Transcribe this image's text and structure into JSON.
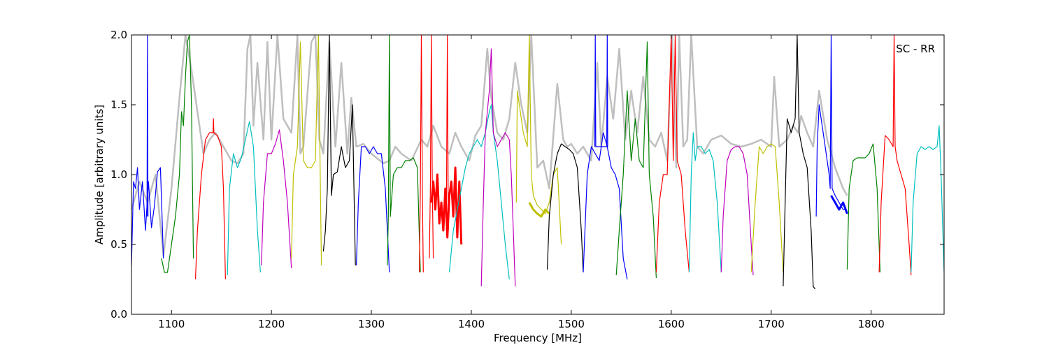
{
  "chart_data": {
    "type": "line",
    "title": "",
    "annotation": "SC - RR",
    "xlabel": "Frequency [MHz]",
    "ylabel": "Amplitude [arbitrary units]",
    "xlim": [
      1060,
      1873
    ],
    "ylim": [
      0,
      2
    ],
    "xticks": [
      1100,
      1200,
      1300,
      1400,
      1500,
      1600,
      1700,
      1800
    ],
    "yticks": [
      0.0,
      0.5,
      1.0,
      1.5,
      2.0
    ],
    "xtick_labels": [
      "1100",
      "1200",
      "1300",
      "1400",
      "1500",
      "1600",
      "1700",
      "1800"
    ],
    "ytick_labels": [
      "0.0",
      "0.5",
      "1.0",
      "1.5",
      "2.0"
    ],
    "grid": false,
    "background_series": {
      "color": "#bfbfbf",
      "x": [
        1060,
        1068,
        1076,
        1084,
        1092,
        1100,
        1108,
        1114,
        1120,
        1132,
        1138,
        1144,
        1152,
        1160,
        1166,
        1172,
        1176,
        1179,
        1182,
        1186,
        1192,
        1196,
        1200,
        1206,
        1212,
        1220,
        1226,
        1229,
        1232,
        1240,
        1244,
        1248,
        1252,
        1258,
        1264,
        1270,
        1276,
        1280,
        1285,
        1292,
        1300,
        1312,
        1318,
        1324,
        1330,
        1340,
        1350,
        1356,
        1362,
        1370,
        1378,
        1384,
        1390,
        1398,
        1404,
        1410,
        1416,
        1420,
        1426,
        1432,
        1438,
        1444,
        1450,
        1456,
        1460,
        1466,
        1472,
        1478,
        1486,
        1492,
        1496,
        1500,
        1506,
        1512,
        1520,
        1526,
        1530,
        1536,
        1542,
        1548,
        1554,
        1560,
        1566,
        1572,
        1578,
        1584,
        1590,
        1596,
        1601,
        1605,
        1608,
        1612,
        1616,
        1620,
        1626,
        1632,
        1640,
        1650,
        1660,
        1670,
        1680,
        1690,
        1700,
        1703,
        1708,
        1716,
        1722,
        1727,
        1730,
        1736,
        1742,
        1748,
        1756,
        1764,
        1772,
        1776
      ],
      "y": [
        0.75,
        0.95,
        0.8,
        1.0,
        0.42,
        0.9,
        1.55,
        2.0,
        1.75,
        1.15,
        1.25,
        1.3,
        1.2,
        1.1,
        1.08,
        1.15,
        1.9,
        2.0,
        1.35,
        1.8,
        1.25,
        1.95,
        1.25,
        2.0,
        1.4,
        1.3,
        2.0,
        1.15,
        1.2,
        1.95,
        2.0,
        1.25,
        1.15,
        1.95,
        1.2,
        1.8,
        1.15,
        1.55,
        1.2,
        1.22,
        1.15,
        1.08,
        1.1,
        1.2,
        1.15,
        1.1,
        1.25,
        1.2,
        1.35,
        1.2,
        1.15,
        1.3,
        1.2,
        1.1,
        1.28,
        1.35,
        1.9,
        1.55,
        1.3,
        1.25,
        1.4,
        1.8,
        1.5,
        1.3,
        2.0,
        1.05,
        1.1,
        0.9,
        1.65,
        1.25,
        1.2,
        1.22,
        1.15,
        1.2,
        1.1,
        1.8,
        1.2,
        1.7,
        1.4,
        1.9,
        1.25,
        1.6,
        1.3,
        1.7,
        1.25,
        1.2,
        1.3,
        1.1,
        2.0,
        1.05,
        2.0,
        1.2,
        1.25,
        2.0,
        1.2,
        1.15,
        1.25,
        1.28,
        1.22,
        1.2,
        1.22,
        1.25,
        1.2,
        1.7,
        1.2,
        1.25,
        1.35,
        1.3,
        1.42,
        1.3,
        1.2,
        1.6,
        1.25,
        1.05,
        0.9,
        0.85
      ]
    },
    "series": [
      {
        "color": "#0000ff",
        "width": 1.2,
        "x": [
          1060,
          1062,
          1064,
          1066,
          1068,
          1071,
          1074,
          1077,
          1080,
          1083,
          1086,
          1089,
          1092
        ],
        "y": [
          0.35,
          0.95,
          0.9,
          1.05,
          0.75,
          0.95,
          0.6,
          0.95,
          0.62,
          0.78,
          1.02,
          1.05,
          0.4
        ]
      },
      {
        "color": "#0000ff",
        "width": 1.2,
        "x": [
          1075.5,
          1076,
          1076.5
        ],
        "y": [
          0.7,
          2.0,
          0.7
        ]
      },
      {
        "color": "#008000",
        "width": 1.2,
        "x": [
          1090,
          1093,
          1096,
          1100,
          1104,
          1108,
          1110,
          1112,
          1114,
          1116,
          1118,
          1120,
          1122
        ],
        "y": [
          0.4,
          0.3,
          0.3,
          0.5,
          0.7,
          1.0,
          1.45,
          1.35,
          1.7,
          1.95,
          2.0,
          1.5,
          0.4
        ]
      },
      {
        "color": "#ff0000",
        "width": 1.2,
        "x": [
          1124,
          1126,
          1130,
          1134,
          1138,
          1142,
          1146,
          1150,
          1152,
          1154
        ],
        "y": [
          0.25,
          0.6,
          1.0,
          1.25,
          1.3,
          1.3,
          1.28,
          1.2,
          0.9,
          0.25
        ]
      },
      {
        "color": "#ff0000",
        "width": 1.2,
        "x": [
          1141.5,
          1142,
          1142.5
        ],
        "y": [
          1.3,
          1.4,
          1.3
        ]
      },
      {
        "color": "#00bfbf",
        "width": 1.2,
        "x": [
          1156,
          1158,
          1162,
          1166,
          1170,
          1174,
          1178,
          1182,
          1186,
          1189
        ],
        "y": [
          0.28,
          0.9,
          1.15,
          1.05,
          1.12,
          1.25,
          1.38,
          1.2,
          0.6,
          0.3
        ]
      },
      {
        "color": "#bf00bf",
        "width": 1.2,
        "x": [
          1190,
          1192,
          1196,
          1200,
          1204,
          1208,
          1212,
          1216,
          1220
        ],
        "y": [
          0.35,
          0.8,
          1.15,
          1.15,
          1.22,
          1.32,
          1.1,
          0.8,
          0.33
        ]
      },
      {
        "color": "#bfbf00",
        "width": 1.2,
        "x": [
          1220,
          1222,
          1226,
          1229,
          1232,
          1236,
          1240,
          1244,
          1247,
          1250
        ],
        "y": [
          0.4,
          1.0,
          1.2,
          1.95,
          1.1,
          1.05,
          1.05,
          1.1,
          2.0,
          0.35
        ]
      },
      {
        "color": "#000000",
        "width": 1.2,
        "x": [
          1252,
          1254,
          1256,
          1258,
          1260,
          1262,
          1266,
          1270,
          1274,
          1278,
          1281,
          1284
        ],
        "y": [
          0.45,
          0.6,
          0.9,
          2.0,
          0.85,
          1.0,
          1.02,
          1.2,
          1.05,
          1.1,
          1.5,
          0.35
        ]
      },
      {
        "color": "#0000ff",
        "width": 1.2,
        "x": [
          1285,
          1287,
          1290,
          1294,
          1298,
          1302,
          1306,
          1310,
          1314,
          1318
        ],
        "y": [
          0.35,
          0.8,
          1.2,
          1.2,
          1.15,
          1.2,
          1.15,
          1.15,
          0.9,
          0.3
        ]
      },
      {
        "color": "#008000",
        "width": 1.2,
        "x": [
          1316,
          1317,
          1318,
          1319,
          1322,
          1326,
          1330,
          1334,
          1338,
          1342,
          1346,
          1349
        ],
        "y": [
          0.35,
          0.7,
          2.0,
          0.7,
          1.0,
          1.05,
          1.05,
          1.1,
          1.1,
          1.12,
          1.05,
          0.3
        ]
      },
      {
        "color": "#ff0000",
        "width": 1.2,
        "x": [
          1348,
          1349,
          1350,
          1351,
          1352
        ],
        "y": [
          0.3,
          0.9,
          2.0,
          0.9,
          0.3
        ]
      },
      {
        "color": "#ff0000",
        "width": 1.2,
        "x": [
          1358,
          1359,
          1360,
          1361,
          1362
        ],
        "y": [
          0.4,
          0.9,
          2.0,
          0.9,
          0.4
        ]
      },
      {
        "color": "#ff0000",
        "width": 1.2,
        "x": [
          1375,
          1376,
          1377
        ],
        "y": [
          0.6,
          2.0,
          0.6
        ]
      },
      {
        "color": "#ff0000",
        "width": 3,
        "x": [
          1360,
          1362,
          1364,
          1366,
          1368,
          1370,
          1372,
          1374,
          1376,
          1378,
          1380,
          1382,
          1384,
          1386,
          1388,
          1390
        ],
        "y": [
          0.8,
          0.95,
          0.75,
          1.0,
          0.65,
          0.8,
          0.6,
          0.9,
          0.55,
          0.85,
          0.95,
          0.7,
          1.05,
          0.55,
          0.95,
          0.5
        ]
      },
      {
        "color": "#00bfbf",
        "width": 1.2,
        "x": [
          1378,
          1382,
          1386,
          1390,
          1394,
          1398,
          1402,
          1406,
          1410,
          1414,
          1418,
          1420,
          1422,
          1426,
          1430,
          1434,
          1438
        ],
        "y": [
          0.3,
          0.6,
          0.75,
          0.9,
          1.05,
          1.15,
          1.2,
          1.25,
          1.2,
          1.3,
          1.45,
          1.5,
          1.3,
          1.1,
          0.8,
          0.5,
          0.25
        ]
      },
      {
        "color": "#bf00bf",
        "width": 1.2,
        "x": [
          1410,
          1412,
          1414,
          1416,
          1418,
          1420,
          1422,
          1426,
          1430,
          1434,
          1438,
          1440,
          1442,
          1444
        ],
        "y": [
          0.2,
          0.8,
          1.3,
          1.45,
          1.6,
          1.9,
          1.3,
          1.2,
          1.25,
          1.3,
          1.25,
          1.0,
          0.6,
          0.2
        ]
      },
      {
        "color": "#bfbf00",
        "width": 1.2,
        "x": [
          1445,
          1446,
          1448,
          1452,
          1456,
          1458,
          1460,
          1462,
          1466,
          1470,
          1474,
          1478,
          1482,
          1486,
          1490
        ],
        "y": [
          0.8,
          1.6,
          1.5,
          1.3,
          1.2,
          2.0,
          1.0,
          0.85,
          0.78,
          0.75,
          0.72,
          0.8,
          1.0,
          1.05,
          0.5
        ]
      },
      {
        "color": "#bfbf00",
        "width": 3,
        "x": [
          1458,
          1462,
          1466,
          1470,
          1474,
          1478
        ],
        "y": [
          0.8,
          0.75,
          0.72,
          0.7,
          0.75,
          0.72
        ]
      },
      {
        "color": "#000000",
        "width": 1.2,
        "x": [
          1476,
          1478,
          1482,
          1486,
          1490,
          1494,
          1498,
          1502,
          1506,
          1510,
          1512
        ],
        "y": [
          0.32,
          0.7,
          1.0,
          1.15,
          1.22,
          1.2,
          1.18,
          1.15,
          1.05,
          0.6,
          0.3
        ]
      },
      {
        "color": "#0000ff",
        "width": 1.2,
        "x": [
          1512,
          1516,
          1520,
          1524,
          1528,
          1532,
          1536,
          1540,
          1544,
          1548,
          1552,
          1556
        ],
        "y": [
          0.3,
          1.0,
          1.2,
          1.15,
          1.1,
          1.3,
          1.2,
          1.05,
          1.0,
          0.9,
          0.4,
          0.25
        ]
      },
      {
        "color": "#0000ff",
        "width": 1.2,
        "x": [
          1523.5,
          1524,
          1524.5,
          1535.5,
          1536,
          1536.5
        ],
        "y": [
          1.2,
          2.0,
          1.2,
          1.2,
          2.0,
          1.2
        ]
      },
      {
        "color": "#008000",
        "width": 1.2,
        "x": [
          1545,
          1548,
          1552,
          1556,
          1560,
          1564,
          1568,
          1572,
          1576,
          1578,
          1582,
          1585
        ],
        "y": [
          0.28,
          0.6,
          1.0,
          1.6,
          1.1,
          1.4,
          1.1,
          1.05,
          1.95,
          1.0,
          0.7,
          0.26
        ]
      },
      {
        "color": "#ff0000",
        "width": 1.2,
        "x": [
          1585,
          1588,
          1592,
          1596,
          1600,
          1602,
          1604,
          1606,
          1610,
          1614,
          1618
        ],
        "y": [
          0.3,
          0.8,
          1.0,
          1.0,
          2.0,
          1.1,
          2.0,
          1.1,
          1.0,
          0.6,
          0.3
        ]
      },
      {
        "color": "#00bfbf",
        "width": 1.2,
        "x": [
          1618,
          1620,
          1622,
          1624,
          1626,
          1630,
          1634,
          1638,
          1642,
          1646,
          1650
        ],
        "y": [
          0.3,
          1.0,
          1.3,
          1.1,
          1.2,
          1.2,
          1.15,
          1.18,
          1.1,
          0.8,
          0.3
        ]
      },
      {
        "color": "#bf00bf",
        "width": 1.2,
        "x": [
          1650,
          1652,
          1656,
          1660,
          1664,
          1668,
          1672,
          1676,
          1680,
          1682
        ],
        "y": [
          0.3,
          0.7,
          1.1,
          1.18,
          1.2,
          1.2,
          1.15,
          1.0,
          0.5,
          0.28
        ]
      },
      {
        "color": "#bfbf00",
        "width": 1.2,
        "x": [
          1680,
          1684,
          1688,
          1692,
          1696,
          1700,
          1704,
          1708,
          1712
        ],
        "y": [
          0.3,
          0.8,
          1.2,
          1.15,
          1.2,
          1.22,
          1.2,
          0.8,
          0.3
        ]
      },
      {
        "color": "#000000",
        "width": 1.2,
        "x": [
          1712,
          1714,
          1716,
          1718,
          1720,
          1722,
          1724,
          1726,
          1728,
          1732,
          1736,
          1740,
          1742,
          1744
        ],
        "y": [
          0.2,
          0.8,
          1.4,
          1.35,
          1.3,
          1.35,
          1.4,
          2.0,
          1.3,
          1.15,
          1.05,
          0.6,
          0.2,
          0.18
        ]
      },
      {
        "color": "#0000ff",
        "width": 1.2,
        "x": [
          1745,
          1746,
          1748,
          1752,
          1756,
          1758,
          1759,
          1760,
          1761,
          1764,
          1768,
          1772,
          1775
        ],
        "y": [
          0.7,
          1.2,
          1.5,
          1.3,
          1.1,
          1.0,
          0.9,
          2.0,
          0.9,
          0.85,
          0.8,
          0.75,
          0.75
        ]
      },
      {
        "color": "#0000ff",
        "width": 3,
        "x": [
          1760,
          1764,
          1768,
          1772,
          1776
        ],
        "y": [
          0.85,
          0.8,
          0.75,
          0.8,
          0.72
        ]
      },
      {
        "color": "#008000",
        "width": 1.2,
        "x": [
          1776,
          1778,
          1782,
          1786,
          1790,
          1794,
          1798,
          1802,
          1806,
          1809
        ],
        "y": [
          0.32,
          0.9,
          1.1,
          1.12,
          1.12,
          1.12,
          1.15,
          1.22,
          0.9,
          0.3
        ]
      },
      {
        "color": "#ff0000",
        "width": 1.2,
        "x": [
          1808,
          1810,
          1814,
          1818,
          1822,
          1823,
          1824,
          1826,
          1830,
          1834,
          1838,
          1840
        ],
        "y": [
          0.3,
          0.8,
          1.28,
          1.25,
          1.2,
          2.0,
          1.2,
          1.1,
          1.0,
          0.9,
          0.5,
          0.28
        ]
      },
      {
        "color": "#00bfbf",
        "width": 1.2,
        "x": [
          1840,
          1842,
          1846,
          1850,
          1854,
          1858,
          1862,
          1866,
          1868,
          1870,
          1873
        ],
        "y": [
          0.3,
          0.8,
          1.15,
          1.2,
          1.18,
          1.2,
          1.18,
          1.2,
          1.35,
          1.0,
          0.3
        ]
      }
    ]
  }
}
